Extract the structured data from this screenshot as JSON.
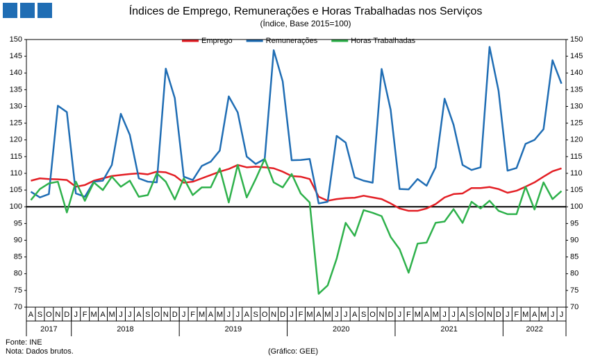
{
  "chart_data": {
    "type": "line",
    "title": "Índices de Emprego, Remunerações e Horas Trabalhadas nos Serviços",
    "subtitle": "(Índice, Base 2015=100)",
    "year_groups": [
      {
        "label": "2017",
        "months": [
          "A",
          "S",
          "O",
          "N",
          "D"
        ]
      },
      {
        "label": "2018",
        "months": [
          "J",
          "F",
          "M",
          "A",
          "M",
          "J",
          "J",
          "A",
          "S",
          "O",
          "N",
          "D"
        ]
      },
      {
        "label": "2019",
        "months": [
          "J",
          "F",
          "M",
          "A",
          "M",
          "J",
          "J",
          "A",
          "S",
          "O",
          "N",
          "D"
        ]
      },
      {
        "label": "2020",
        "months": [
          "J",
          "F",
          "M",
          "A",
          "M",
          "J",
          "J",
          "A",
          "S",
          "O",
          "N",
          "D"
        ]
      },
      {
        "label": "2021",
        "months": [
          "J",
          "F",
          "M",
          "A",
          "M",
          "J",
          "J",
          "A",
          "S",
          "O",
          "N",
          "D"
        ]
      },
      {
        "label": "2022",
        "months": [
          "J",
          "F",
          "M",
          "A",
          "M",
          "J",
          "J"
        ]
      }
    ],
    "series": [
      {
        "name": "Emprego",
        "color": "#e31e24",
        "values": [
          107.8,
          108.5,
          108.3,
          108.2,
          108,
          106,
          106.5,
          107.8,
          108.5,
          109.2,
          109.5,
          109.8,
          110,
          109.7,
          110.5,
          110.3,
          109.3,
          107.2,
          107.5,
          108.5,
          109.5,
          110.5,
          111.3,
          112.5,
          111.8,
          112,
          111.8,
          111.5,
          110.5,
          109.2,
          109,
          108.3,
          103,
          101.8,
          102.3,
          102.6,
          102.7,
          103.3,
          102.8,
          102.3,
          101,
          99.5,
          98.8,
          98.8,
          99.5,
          100.8,
          102.8,
          103.8,
          104,
          105.6,
          105.6,
          105.9,
          105.3,
          104.2,
          104.8,
          106,
          107.3,
          109,
          110.6,
          111.5
        ]
      },
      {
        "name": "Remunerações",
        "color": "#1f6db4",
        "values": [
          104.5,
          102.8,
          103.8,
          130.2,
          128.3,
          104,
          103,
          107.5,
          107.8,
          112.5,
          127.8,
          121.5,
          108.5,
          107.5,
          107.3,
          141.3,
          132.5,
          109,
          108,
          112.2,
          113.5,
          116.8,
          133,
          128.2,
          115,
          112.8,
          114.3,
          146.8,
          137.5,
          113.9,
          114,
          114.3,
          101,
          101.5,
          121.2,
          119.2,
          108.8,
          107.8,
          107.2,
          141.2,
          129,
          105.3,
          105.2,
          108.3,
          106.3,
          111.8,
          132.3,
          124.5,
          112.5,
          111,
          111.8,
          147.8,
          134.7,
          110.8,
          111.6,
          118.8,
          120,
          123.2,
          143.8,
          136.8
        ]
      },
      {
        "name": "Horas Trabalhadas",
        "color": "#2eb14b",
        "values": [
          102,
          105.3,
          107,
          107.5,
          98.3,
          107.5,
          101.8,
          107.3,
          105,
          109,
          106,
          107.8,
          103,
          103.5,
          110,
          107.5,
          102.2,
          108.5,
          103.5,
          105.8,
          105.8,
          111.5,
          101.3,
          112.5,
          102.8,
          108.3,
          114.3,
          107.3,
          105.8,
          109.8,
          104,
          101.3,
          74,
          76.5,
          84.5,
          95.2,
          91.3,
          99,
          98.2,
          97.2,
          91,
          87.3,
          80.3,
          89,
          89.3,
          95.2,
          95.6,
          99.3,
          95.2,
          101.5,
          99.5,
          101.8,
          98.8,
          97.8,
          97.8,
          106,
          99.2,
          107.3,
          102.3,
          104.7
        ]
      }
    ],
    "ylim": [
      70,
      150
    ],
    "yticks": [
      70,
      75,
      80,
      85,
      90,
      95,
      100,
      105,
      110,
      115,
      120,
      125,
      130,
      135,
      140,
      145,
      150
    ],
    "y2lim": [
      70,
      150
    ],
    "y2ticks": [
      70,
      75,
      80,
      85,
      90,
      95,
      100,
      105,
      110,
      115,
      120,
      125,
      130,
      135,
      140,
      145,
      150
    ],
    "reference_line": 100,
    "grid": false,
    "legend": "top",
    "source": "Fonte: INE",
    "note": "Nota: Dados brutos.",
    "credit": "(Gráfico: GEE)"
  }
}
